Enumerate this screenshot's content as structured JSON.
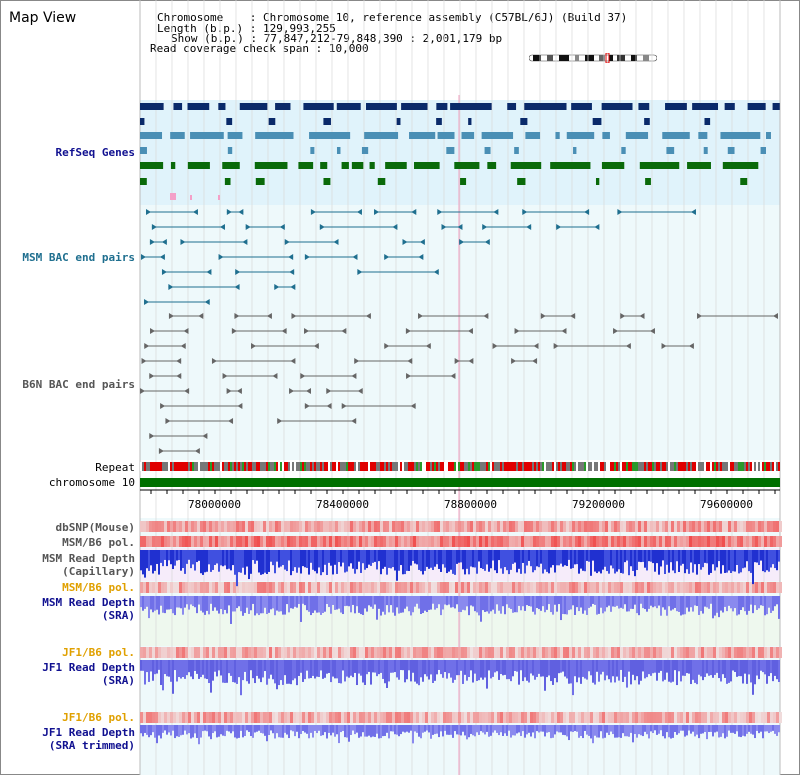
{
  "header": {
    "title": "Map View",
    "chromosome_key": "Chromosome",
    "chromosome_value": "Chromosome 10, reference assembly (C57BL/6J) (Build 37)",
    "length_key": "Length (b.p.)",
    "length_value": "129,993,255",
    "show_key": "Show (b.p.)",
    "show_value": "77,847,212-79,848,390 : 2,001,179 bp",
    "coverage_key": "Read coverage check span",
    "coverage_value": "10,000"
  },
  "tracks": {
    "refseq": "RefSeq Genes",
    "msm_bac": "MSM BAC end pairs",
    "b6n_bac": "B6N BAC end pairs",
    "repeat": "Repeat",
    "chromosome": "chromosome 10",
    "dbsnp": "dbSNP(Mouse)",
    "msm_b6_pol_1": "MSM/B6 pol.",
    "msm_depth_cap_1": "MSM Read Depth",
    "msm_depth_cap_2": "(Capillary)",
    "msm_b6_pol_2": "MSM/B6 pol.",
    "msm_depth_sra_1": "MSM Read Depth",
    "msm_depth_sra_2": "(SRA)",
    "jf1_b6_pol_1": "JF1/B6 pol.",
    "jf1_depth_sra_1": "JF1 Read Depth",
    "jf1_depth_sra_2": "(SRA)",
    "jf1_b6_pol_2": "JF1/B6 pol.",
    "jf1_depth_trim_1": "JF1 Read Depth",
    "jf1_depth_trim_2": "(SRA trimmed)"
  },
  "axis_ticks": [
    "78000000",
    "78400000",
    "78800000",
    "79200000",
    "79600000"
  ],
  "colors": {
    "refseq_dark": "#0a2a6a",
    "refseq_mid": "#4a8fb5",
    "refseq_green": "#0a6a0a",
    "msm_bac": "#1f6f8f",
    "b6n_bac": "#666666",
    "depth_blue": "#2030d0",
    "depth_light": "#7070e8",
    "pol_red": "#e03030",
    "label_orange": "#e0a000",
    "label_navy": "#101090"
  }
}
